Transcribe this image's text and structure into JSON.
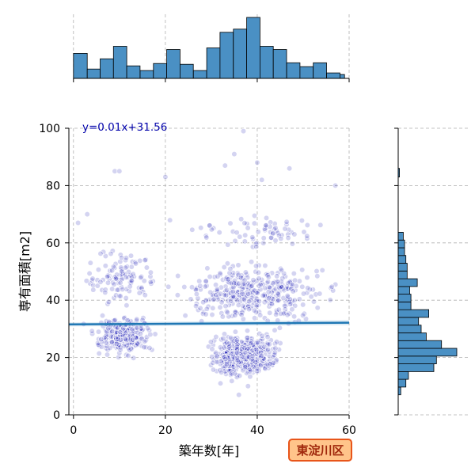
{
  "chart_data": {
    "type": "scatter",
    "xlabel": "築年数[年]",
    "ylabel": "専有面積[m2]",
    "xlim": [
      -1,
      60
    ],
    "ylim": [
      0,
      100
    ],
    "x_ticks": [
      "0",
      "20",
      "40",
      "60"
    ],
    "y_ticks": [
      "0",
      "20",
      "40",
      "60",
      "80",
      "100"
    ],
    "grid": true,
    "regression": {
      "label": "y=0.01x+31.56",
      "slope": 0.01,
      "intercept": 31.56
    },
    "badge": "東淀川区",
    "point_color": "#0000aa",
    "line_color": "#1f77b4",
    "hist_color": "#4a90c4",
    "marginal_x_hist": {
      "bin_edges": [
        0,
        3,
        5.8,
        8.7,
        11.6,
        14.5,
        17.4,
        20.3,
        23.2,
        26.1,
        29,
        31.9,
        34.8,
        37.7,
        40.6,
        43.5,
        46.4,
        49.3,
        52.2,
        55.1,
        58,
        59
      ],
      "counts": [
        32,
        12,
        25,
        41,
        16,
        10,
        19,
        37,
        18,
        10,
        39,
        59,
        63,
        78,
        41,
        37,
        20,
        15,
        20,
        7,
        5
      ]
    },
    "marginal_y_hist": {
      "bin_edges": [
        7,
        9.7,
        12.4,
        15.1,
        17.8,
        20.5,
        23.2,
        25.9,
        28.6,
        31.3,
        34,
        36.7,
        39.4,
        42.1,
        44.8,
        47.5,
        50.2,
        52.9,
        55.6,
        58.3,
        61,
        63.7,
        83,
        86
      ],
      "counts": [
        2,
        6,
        8,
        28,
        30,
        46,
        34,
        22,
        18,
        16,
        24,
        10,
        10,
        9,
        15,
        7,
        7,
        6,
        5,
        5,
        4,
        0,
        1
      ]
    },
    "point_clusters": [
      {
        "x_range": [
          28,
          46
        ],
        "y_range": [
          11,
          30
        ],
        "n": 480
      },
      {
        "x_range": [
          2,
          20
        ],
        "y_range": [
          19,
          36
        ],
        "n": 260
      },
      {
        "x_range": [
          18,
          60
        ],
        "y_range": [
          28,
          56
        ],
        "n": 380
      },
      {
        "x_range": [
          0,
          20
        ],
        "y_range": [
          36,
          60
        ],
        "n": 110
      },
      {
        "x_range": [
          20,
          60
        ],
        "y_range": [
          56,
          72
        ],
        "n": 70
      }
    ],
    "outlier_points": [
      [
        9,
        85
      ],
      [
        10,
        85
      ],
      [
        20,
        83
      ],
      [
        37,
        99
      ],
      [
        35,
        91
      ],
      [
        33,
        87
      ],
      [
        40,
        88
      ],
      [
        41,
        82
      ],
      [
        47,
        86
      ],
      [
        57,
        80
      ],
      [
        1,
        67
      ],
      [
        3,
        70
      ],
      [
        38,
        10
      ],
      [
        36,
        7
      ],
      [
        32,
        11
      ]
    ]
  }
}
